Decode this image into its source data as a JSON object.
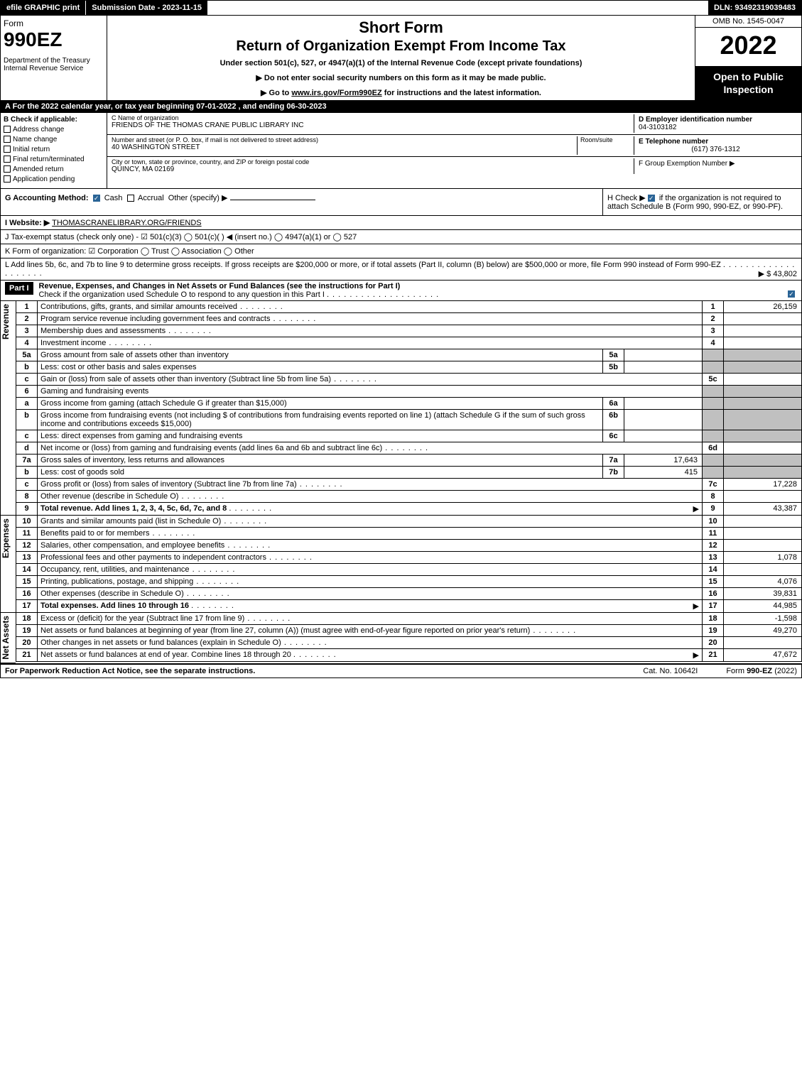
{
  "topbar": {
    "efile": "efile GRAPHIC print",
    "submission": "Submission Date - 2023-11-15",
    "dln": "DLN: 93492319039483"
  },
  "header": {
    "form_label": "Form",
    "form_no": "990EZ",
    "dept": "Department of the Treasury\nInternal Revenue Service",
    "title1": "Short Form",
    "title2": "Return of Organization Exempt From Income Tax",
    "subtitle": "Under section 501(c), 527, or 4947(a)(1) of the Internal Revenue Code (except private foundations)",
    "instr1": "▶ Do not enter social security numbers on this form as it may be made public.",
    "instr2_prefix": "▶ Go to ",
    "instr2_link": "www.irs.gov/Form990EZ",
    "instr2_suffix": " for instructions and the latest information.",
    "omb": "OMB No. 1545-0047",
    "year": "2022",
    "open": "Open to Public Inspection"
  },
  "lineA": "A  For the 2022 calendar year, or tax year beginning 07-01-2022 , and ending 06-30-2023",
  "sectionB": {
    "label": "B  Check if applicable:",
    "items": [
      "Address change",
      "Name change",
      "Initial return",
      "Final return/terminated",
      "Amended return",
      "Application pending"
    ]
  },
  "sectionC": {
    "name_label": "C Name of organization",
    "name": "FRIENDS OF THE THOMAS CRANE PUBLIC LIBRARY INC",
    "addr_label": "Number and street (or P. O. box, if mail is not delivered to street address)",
    "addr": "40 WASHINGTON STREET",
    "room_label": "Room/suite",
    "city_label": "City or town, state or province, country, and ZIP or foreign postal code",
    "city": "QUINCY, MA  02169"
  },
  "sectionD": {
    "label": "D Employer identification number",
    "value": "04-3103182"
  },
  "sectionE": {
    "label": "E Telephone number",
    "value": "(617) 376-1312"
  },
  "sectionF": {
    "label": "F Group Exemption Number  ▶"
  },
  "lineG": {
    "label": "G Accounting Method:",
    "cash": "Cash",
    "accrual": "Accrual",
    "other": "Other (specify) ▶"
  },
  "lineH": {
    "text1": "H  Check ▶",
    "text2": "if the organization is not required to attach Schedule B (Form 990, 990-EZ, or 990-PF)."
  },
  "lineI": {
    "label": "I Website: ▶",
    "value": "THOMASCRANELIBRARY.ORG/FRIENDS"
  },
  "lineJ": "J Tax-exempt status (check only one) -  ☑ 501(c)(3)  ◯ 501(c)(  ) ◀ (insert no.)  ◯ 4947(a)(1) or  ◯ 527",
  "lineK": "K Form of organization:  ☑ Corporation  ◯ Trust  ◯ Association  ◯ Other",
  "lineL": {
    "text": "L Add lines 5b, 6c, and 7b to line 9 to determine gross receipts. If gross receipts are $200,000 or more, or if total assets (Part II, column (B) below) are $500,000 or more, file Form 990 instead of Form 990-EZ",
    "value": "▶ $ 43,802"
  },
  "part1": {
    "label": "Part I",
    "title": "Revenue, Expenses, and Changes in Net Assets or Fund Balances (see the instructions for Part I)",
    "check": "Check if the organization used Schedule O to respond to any question in this Part I"
  },
  "sidebars": {
    "revenue": "Revenue",
    "expenses": "Expenses",
    "netassets": "Net Assets"
  },
  "revenue_lines": [
    {
      "n": "1",
      "d": "Contributions, gifts, grants, and similar amounts received",
      "rn": "1",
      "rv": "26,159"
    },
    {
      "n": "2",
      "d": "Program service revenue including government fees and contracts",
      "rn": "2",
      "rv": ""
    },
    {
      "n": "3",
      "d": "Membership dues and assessments",
      "rn": "3",
      "rv": ""
    },
    {
      "n": "4",
      "d": "Investment income",
      "rn": "4",
      "rv": ""
    },
    {
      "n": "5a",
      "d": "Gross amount from sale of assets other than inventory",
      "mn": "5a",
      "mv": "",
      "grey": true
    },
    {
      "n": "b",
      "d": "Less: cost or other basis and sales expenses",
      "mn": "5b",
      "mv": "",
      "grey": true
    },
    {
      "n": "c",
      "d": "Gain or (loss) from sale of assets other than inventory (Subtract line 5b from line 5a)",
      "rn": "5c",
      "rv": ""
    },
    {
      "n": "6",
      "d": "Gaming and fundraising events",
      "grey": true,
      "nornum": true
    },
    {
      "n": "a",
      "d": "Gross income from gaming (attach Schedule G if greater than $15,000)",
      "mn": "6a",
      "mv": "",
      "grey": true
    },
    {
      "n": "b",
      "d": "Gross income from fundraising events (not including $                         of contributions from fundraising events reported on line 1) (attach Schedule G if the sum of such gross income and contributions exceeds $15,000)",
      "mn": "6b",
      "mv": "",
      "grey": true
    },
    {
      "n": "c",
      "d": "Less: direct expenses from gaming and fundraising events",
      "mn": "6c",
      "mv": "",
      "grey": true
    },
    {
      "n": "d",
      "d": "Net income or (loss) from gaming and fundraising events (add lines 6a and 6b and subtract line 6c)",
      "rn": "6d",
      "rv": ""
    },
    {
      "n": "7a",
      "d": "Gross sales of inventory, less returns and allowances",
      "mn": "7a",
      "mv": "17,643",
      "grey": true
    },
    {
      "n": "b",
      "d": "Less: cost of goods sold",
      "mn": "7b",
      "mv": "415",
      "grey": true
    },
    {
      "n": "c",
      "d": "Gross profit or (loss) from sales of inventory (Subtract line 7b from line 7a)",
      "rn": "7c",
      "rv": "17,228"
    },
    {
      "n": "8",
      "d": "Other revenue (describe in Schedule O)",
      "rn": "8",
      "rv": ""
    },
    {
      "n": "9",
      "d": "Total revenue. Add lines 1, 2, 3, 4, 5c, 6d, 7c, and 8",
      "rn": "9",
      "rv": "43,387",
      "bold": true,
      "arrow": true
    }
  ],
  "expense_lines": [
    {
      "n": "10",
      "d": "Grants and similar amounts paid (list in Schedule O)",
      "rn": "10",
      "rv": ""
    },
    {
      "n": "11",
      "d": "Benefits paid to or for members",
      "rn": "11",
      "rv": ""
    },
    {
      "n": "12",
      "d": "Salaries, other compensation, and employee benefits",
      "rn": "12",
      "rv": ""
    },
    {
      "n": "13",
      "d": "Professional fees and other payments to independent contractors",
      "rn": "13",
      "rv": "1,078"
    },
    {
      "n": "14",
      "d": "Occupancy, rent, utilities, and maintenance",
      "rn": "14",
      "rv": ""
    },
    {
      "n": "15",
      "d": "Printing, publications, postage, and shipping",
      "rn": "15",
      "rv": "4,076"
    },
    {
      "n": "16",
      "d": "Other expenses (describe in Schedule O)",
      "rn": "16",
      "rv": "39,831"
    },
    {
      "n": "17",
      "d": "Total expenses. Add lines 10 through 16",
      "rn": "17",
      "rv": "44,985",
      "bold": true,
      "arrow": true
    }
  ],
  "netasset_lines": [
    {
      "n": "18",
      "d": "Excess or (deficit) for the year (Subtract line 17 from line 9)",
      "rn": "18",
      "rv": "-1,598"
    },
    {
      "n": "19",
      "d": "Net assets or fund balances at beginning of year (from line 27, column (A)) (must agree with end-of-year figure reported on prior year's return)",
      "rn": "19",
      "rv": "49,270"
    },
    {
      "n": "20",
      "d": "Other changes in net assets or fund balances (explain in Schedule O)",
      "rn": "20",
      "rv": ""
    },
    {
      "n": "21",
      "d": "Net assets or fund balances at end of year. Combine lines 18 through 20",
      "rn": "21",
      "rv": "47,672",
      "arrow": true
    }
  ],
  "footer": {
    "left": "For Paperwork Reduction Act Notice, see the separate instructions.",
    "mid": "Cat. No. 10642I",
    "right": "Form 990-EZ (2022)"
  }
}
